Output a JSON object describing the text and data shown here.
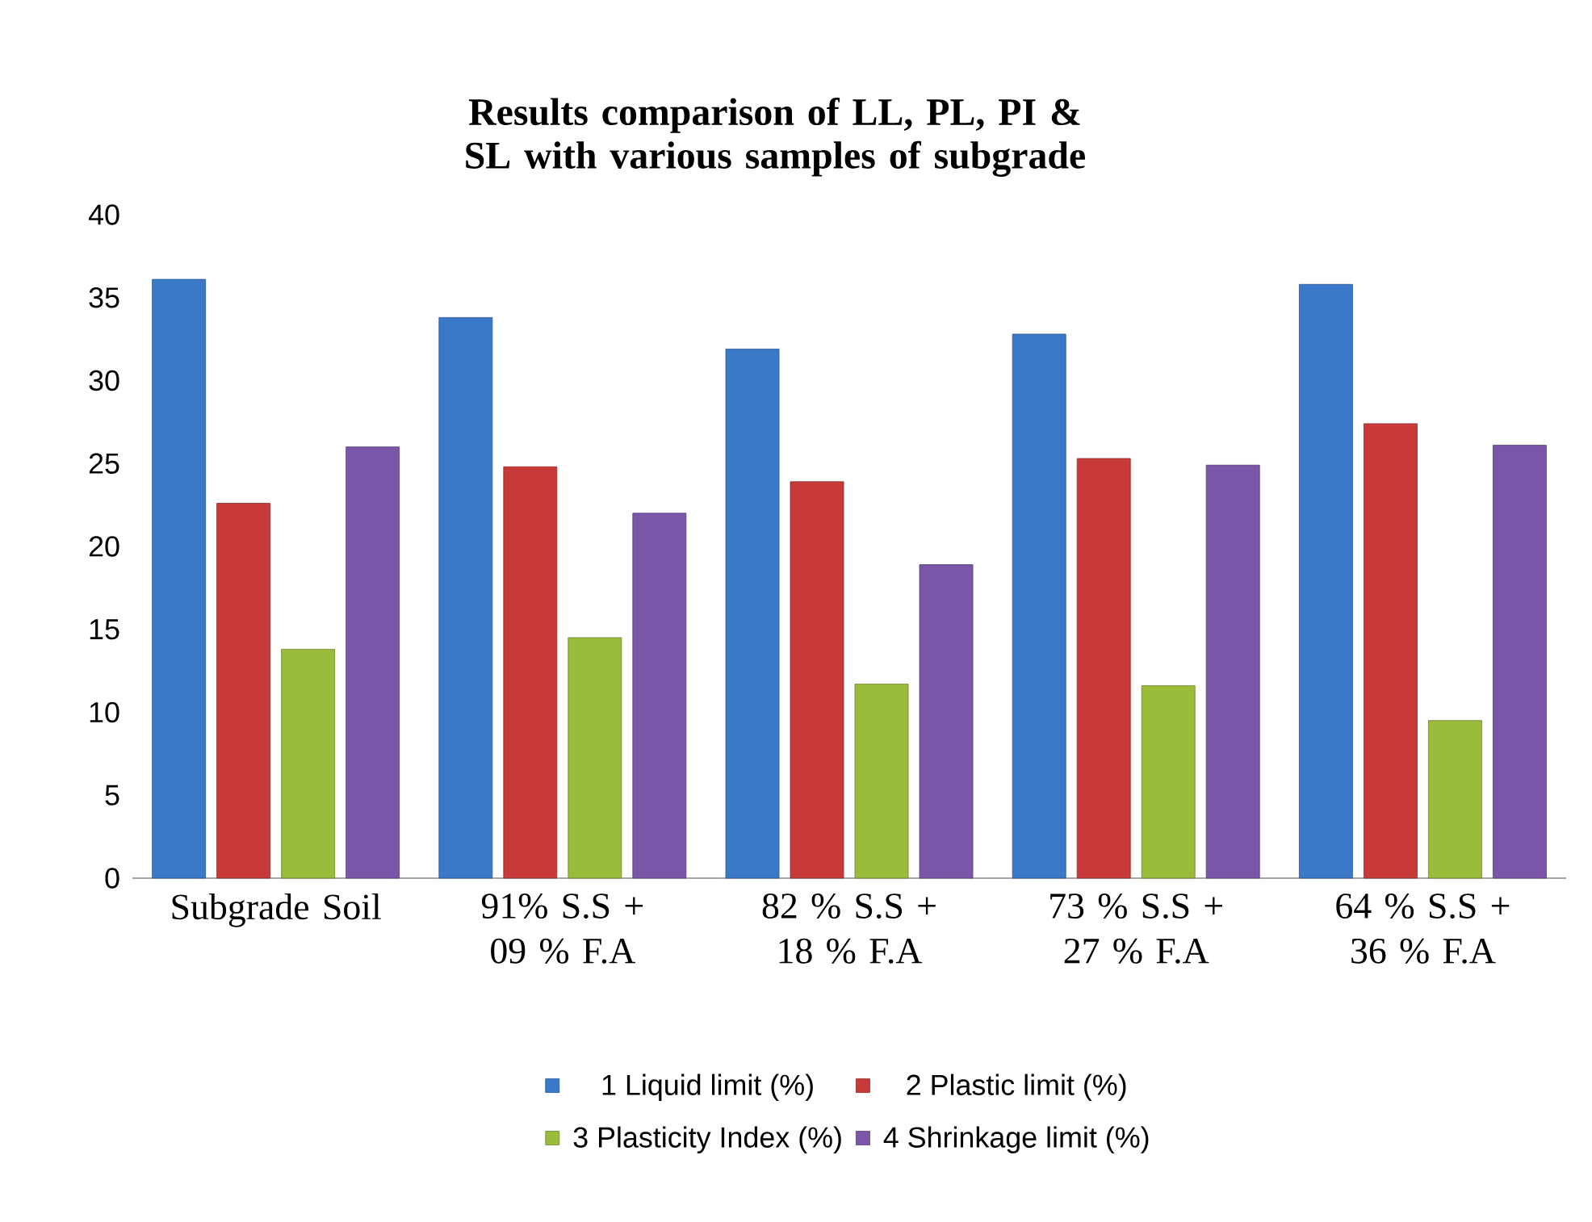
{
  "chart_data": {
    "type": "bar",
    "title": "Results comparison of LL, PL, PI  & SL with various samples of subgrade",
    "categories": [
      "Subgrade Soil",
      "91% S.S + 09 % F.A",
      "82 % S.S + 18 % F.A",
      "73 % S.S + 27 % F.A",
      "64 % S.S + 36 % F.A"
    ],
    "series": [
      {
        "name": "1 Liquid limit (%)",
        "color": "#3a78c8",
        "values": [
          36.1,
          33.8,
          31.9,
          32.8,
          35.8
        ]
      },
      {
        "name": "2 Plastic limit (%)",
        "color": "#c83a3a",
        "values": [
          22.6,
          24.8,
          23.9,
          25.3,
          27.4
        ]
      },
      {
        "name": "3 Plasticity Index (%)",
        "color": "#9bbb3b",
        "values": [
          13.8,
          14.5,
          11.7,
          11.6,
          9.5
        ]
      },
      {
        "name": "4 Shrinkage limit (%)",
        "color": "#7a55a8",
        "values": [
          26.0,
          22.0,
          18.9,
          24.9,
          26.1
        ]
      }
    ],
    "ylim": [
      0,
      40
    ],
    "yticks": [
      0,
      5,
      10,
      15,
      20,
      25,
      30,
      35,
      40
    ],
    "grid": false,
    "legend": "bottom"
  }
}
